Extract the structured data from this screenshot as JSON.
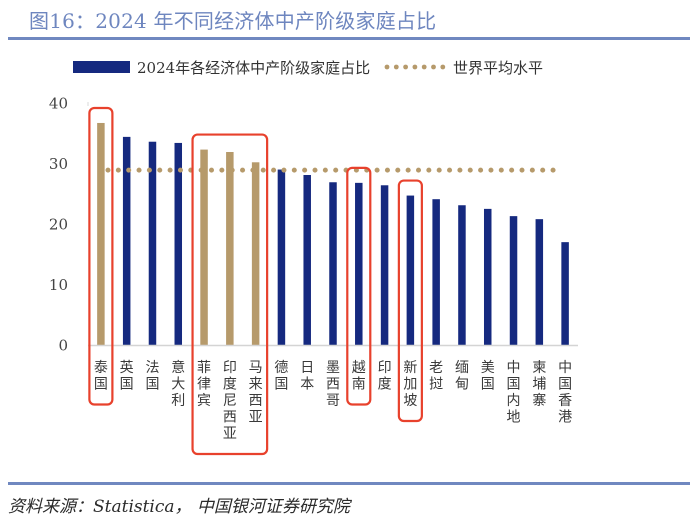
{
  "header": {
    "title": "图16：2024 年不同经济体中产阶级家庭占比"
  },
  "footer": {
    "source": "资料来源：Statistica，  中国银河证券研究院"
  },
  "colors": {
    "bar_default": "#15297f",
    "bar_highlight": "#b69a6b",
    "average_line": "#b69a6b",
    "annotation_box": "#e8412c",
    "title": "#6e86bf",
    "rule": "#7088c0"
  },
  "chart_data": {
    "type": "bar",
    "title": "",
    "xlabel": "",
    "ylabel": "",
    "ylim": [
      0,
      40
    ],
    "yticks": [
      0,
      10,
      20,
      30,
      40
    ],
    "grid": false,
    "legend_position": "top-center",
    "categories": [
      "泰国",
      "英国",
      "法国",
      "意大利",
      "菲律宾",
      "印度尼西亚",
      "马来西亚",
      "德国",
      "日本",
      "墨西哥",
      "越南",
      "印度",
      "新加坡",
      "老挝",
      "缅甸",
      "美国",
      "中国内地",
      "柬埔寨",
      "中国香港"
    ],
    "series": [
      {
        "name": "2024年各经济体中产阶级家庭占比",
        "type": "bar",
        "values": [
          36.7,
          34.4,
          33.6,
          33.4,
          32.3,
          31.9,
          30.2,
          29.0,
          28.1,
          26.9,
          26.8,
          26.4,
          24.7,
          24.1,
          23.1,
          22.5,
          21.3,
          20.8,
          17.0
        ],
        "highlighted": [
          0,
          4,
          5,
          6
        ]
      },
      {
        "name": "世界平均水平",
        "type": "line",
        "style": "dotted",
        "value": 28.9
      }
    ],
    "annotation_groups": [
      {
        "members": [
          "泰国"
        ]
      },
      {
        "members": [
          "菲律宾",
          "印度尼西亚",
          "马来西亚"
        ]
      },
      {
        "members": [
          "越南"
        ]
      },
      {
        "members": [
          "新加坡"
        ]
      }
    ]
  }
}
